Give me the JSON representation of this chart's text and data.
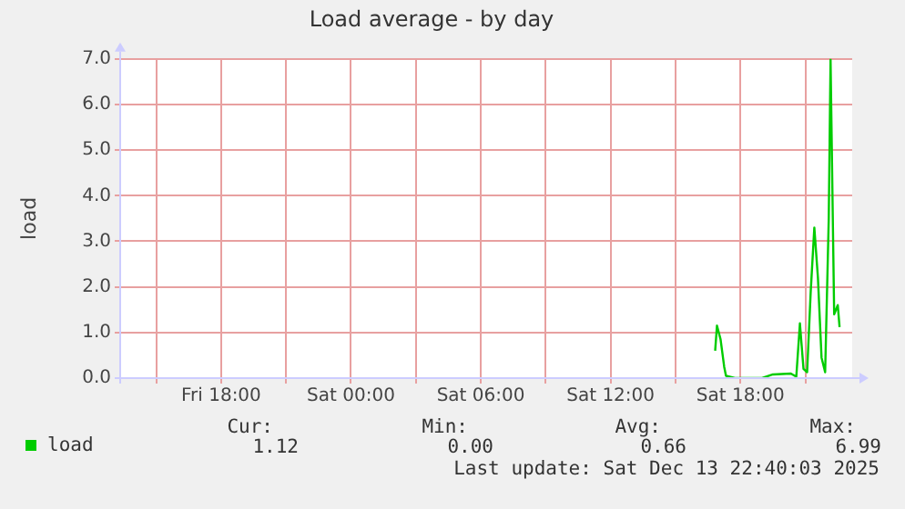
{
  "chart_data": {
    "type": "line",
    "title": "Load average - by day",
    "ylabel": "load",
    "x": [
      "2025-12-13T16:50",
      "2025-12-13T16:55",
      "2025-12-13T17:05",
      "2025-12-13T17:15",
      "2025-12-13T17:20",
      "2025-12-13T17:45",
      "2025-12-13T19:00",
      "2025-12-13T19:30",
      "2025-12-13T20:20",
      "2025-12-13T20:35",
      "2025-12-13T20:45",
      "2025-12-13T20:55",
      "2025-12-13T21:05",
      "2025-12-13T21:15",
      "2025-12-13T21:25",
      "2025-12-13T21:35",
      "2025-12-13T21:45",
      "2025-12-13T21:55",
      "2025-12-13T22:05",
      "2025-12-13T22:10",
      "2025-12-13T22:20",
      "2025-12-13T22:30",
      "2025-12-13T22:35"
    ],
    "series": [
      {
        "name": "load",
        "color": "#00cc00",
        "values": [
          0.6,
          1.15,
          0.85,
          0.25,
          0.05,
          0.0,
          0.0,
          0.08,
          0.1,
          0.03,
          1.2,
          0.2,
          0.13,
          1.9,
          3.3,
          2.2,
          0.45,
          0.13,
          3.5,
          6.99,
          1.4,
          1.6,
          1.12
        ]
      }
    ],
    "xlim": [
      "2025-12-12T13:20",
      "2025-12-13T23:10"
    ],
    "xticks": [
      {
        "value": "2025-12-12T15:00",
        "label": null
      },
      {
        "value": "2025-12-12T18:00",
        "label": "Fri 18:00"
      },
      {
        "value": "2025-12-12T21:00",
        "label": null
      },
      {
        "value": "2025-12-13T00:00",
        "label": "Sat 00:00"
      },
      {
        "value": "2025-12-13T03:00",
        "label": null
      },
      {
        "value": "2025-12-13T06:00",
        "label": "Sat 06:00"
      },
      {
        "value": "2025-12-13T09:00",
        "label": null
      },
      {
        "value": "2025-12-13T12:00",
        "label": "Sat 12:00"
      },
      {
        "value": "2025-12-13T15:00",
        "label": null
      },
      {
        "value": "2025-12-13T18:00",
        "label": "Sat 18:00"
      },
      {
        "value": "2025-12-13T21:00",
        "label": null
      }
    ],
    "ylim": [
      0,
      7
    ],
    "yticks": [
      {
        "value": 0,
        "label": "0.0"
      },
      {
        "value": 1,
        "label": "1.0"
      },
      {
        "value": 2,
        "label": "2.0"
      },
      {
        "value": 3,
        "label": "3.0"
      },
      {
        "value": 4,
        "label": "4.0"
      },
      {
        "value": 5,
        "label": "5.0"
      },
      {
        "value": 6,
        "label": "6.0"
      },
      {
        "value": 7,
        "label": "7.0"
      }
    ],
    "grid": true,
    "legend": "bottom left",
    "marker": "none",
    "line_style": "solid",
    "annotations": [
      "Cur:",
      "1.12",
      "Min:",
      "0.00",
      "Avg:",
      "0.66",
      "Max:",
      "6.99",
      "Last update: Sat Dec 13 22:40:03 2025"
    ]
  }
}
